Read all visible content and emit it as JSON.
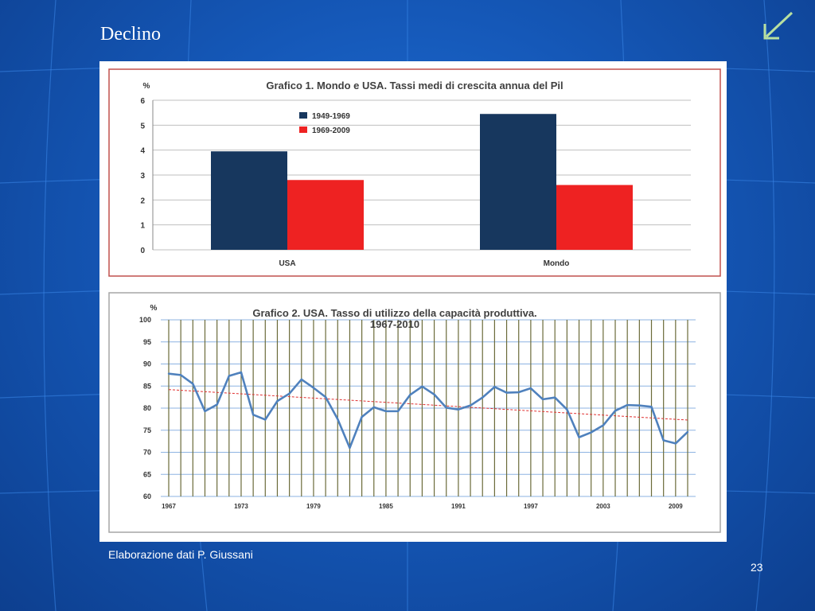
{
  "slide": {
    "title": "Declino",
    "credit": "Elaborazione dati P. Giussani",
    "page_number": "23",
    "nav_icon": "back-arrow-icon"
  },
  "chart_data": [
    {
      "type": "bar",
      "title": "Grafico 1. Mondo e USA. Tassi medi di crescita annua del Pil",
      "ylabel": "%",
      "xlabel": "",
      "categories": [
        "USA",
        "Mondo"
      ],
      "series": [
        {
          "name": "1949-1969",
          "color": "#17375e",
          "values": [
            3.95,
            5.45
          ]
        },
        {
          "name": "1969-2009",
          "color": "#ee2222",
          "values": [
            2.8,
            2.6
          ]
        }
      ],
      "ylim": [
        0,
        6
      ],
      "yticks": [
        "0",
        "1",
        "2",
        "3",
        "4",
        "5",
        "6"
      ],
      "legend": "top-center",
      "grid": true
    },
    {
      "type": "line",
      "title": "Grafico 2. USA. Tasso di utilizzo della capacità produttiva.",
      "title_line2": "1967-2010",
      "ylabel": "%",
      "xlabel": "",
      "x": [
        1967,
        1968,
        1969,
        1970,
        1971,
        1972,
        1973,
        1974,
        1975,
        1976,
        1977,
        1978,
        1979,
        1980,
        1981,
        1982,
        1983,
        1984,
        1985,
        1986,
        1987,
        1988,
        1989,
        1990,
        1991,
        1992,
        1993,
        1994,
        1995,
        1996,
        1997,
        1998,
        1999,
        2000,
        2001,
        2002,
        2003,
        2004,
        2005,
        2006,
        2007,
        2008,
        2009,
        2010
      ],
      "values": [
        87.8,
        87.5,
        85.5,
        79.3,
        80.8,
        87.3,
        88.1,
        78.5,
        77.4,
        81.6,
        83.3,
        86.5,
        84.6,
        82.5,
        77.5,
        71.0,
        78.0,
        80.2,
        79.3,
        79.3,
        83.0,
        84.9,
        83.1,
        80.1,
        79.7,
        80.6,
        82.4,
        84.8,
        83.5,
        83.6,
        84.5,
        82.0,
        82.4,
        79.7,
        73.4,
        74.5,
        76.1,
        79.4,
        80.7,
        80.6,
        80.3,
        72.7,
        72.0,
        74.6
      ],
      "trend": [
        84.2,
        77.3
      ],
      "trend_color": "#e03030",
      "line_color": "#4f81bd",
      "ylim": [
        60,
        100
      ],
      "yticks": [
        "60",
        "65",
        "70",
        "75",
        "80",
        "85",
        "90",
        "95",
        "100"
      ],
      "xticks": [
        "1967",
        "1973",
        "1979",
        "1985",
        "1991",
        "1997",
        "2003",
        "2009"
      ],
      "grid": true
    }
  ]
}
